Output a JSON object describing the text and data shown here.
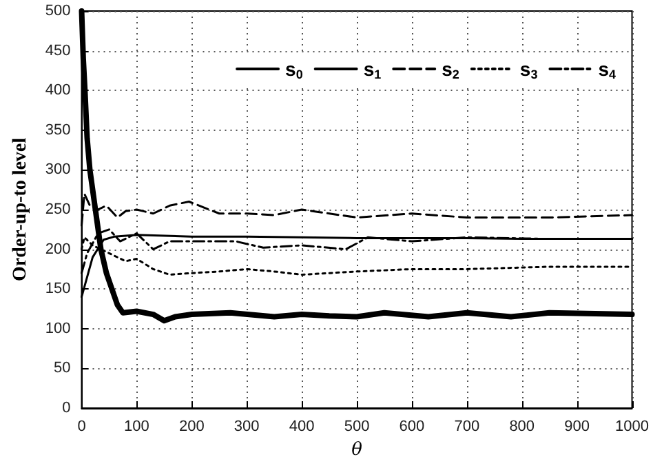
{
  "chart_data": {
    "type": "line",
    "xlabel": "θ",
    "ylabel": "Order-up-to level",
    "xlim": [
      0,
      1000
    ],
    "ylim": [
      0,
      500
    ],
    "xticks": [
      0,
      100,
      200,
      300,
      400,
      500,
      600,
      700,
      800,
      900,
      1000
    ],
    "yticks": [
      0,
      50,
      100,
      150,
      200,
      250,
      300,
      350,
      400,
      450,
      500
    ],
    "grid": true,
    "legend": "top right",
    "marker": "none",
    "series": [
      {
        "name": "s$_{0}$",
        "color": "#000000",
        "line_style": "solid",
        "x": [
          0,
          20,
          40,
          60,
          100,
          200,
          300,
          400,
          500,
          600,
          700,
          800,
          900,
          1000
        ],
        "values": [
          140,
          190,
          212,
          216,
          218,
          216,
          216,
          215,
          214,
          214,
          214,
          213,
          213,
          213
        ]
      },
      {
        "name": "s$_{1}$",
        "color": "#000000",
        "line_style": "solid",
        "x": [
          0,
          3,
          6,
          10,
          15,
          25,
          35,
          45,
          55,
          65,
          75,
          100,
          130,
          150,
          170,
          200,
          270,
          350,
          400,
          450,
          500,
          550,
          630,
          700,
          780,
          850,
          1000
        ],
        "values": [
          500,
          440,
          400,
          340,
          300,
          250,
          200,
          170,
          150,
          130,
          120,
          122,
          118,
          110,
          115,
          118,
          120,
          115,
          118,
          116,
          115,
          120,
          115,
          120,
          115,
          120,
          118
        ]
      },
      {
        "name": "s$_{2}$",
        "color": "#000000",
        "line_style": "dashed",
        "x": [
          0,
          5,
          15,
          30,
          45,
          65,
          80,
          100,
          130,
          160,
          195,
          250,
          300,
          350,
          400,
          450,
          500,
          600,
          700,
          850,
          1000
        ],
        "values": [
          230,
          270,
          255,
          250,
          255,
          240,
          248,
          250,
          245,
          255,
          260,
          245,
          245,
          243,
          250,
          245,
          240,
          245,
          240,
          240,
          243
        ]
      },
      {
        "name": "s$_{3}$",
        "color": "#000000",
        "line_style": "dotted",
        "x": [
          0,
          5,
          20,
          50,
          80,
          100,
          130,
          160,
          200,
          250,
          300,
          350,
          400,
          450,
          500,
          600,
          700,
          850,
          1000
        ],
        "values": [
          200,
          215,
          205,
          195,
          185,
          188,
          175,
          168,
          170,
          172,
          175,
          172,
          168,
          170,
          172,
          175,
          175,
          178,
          178
        ]
      },
      {
        "name": "s$_{4}$",
        "color": "#000000",
        "line_style": "dashdot",
        "x": [
          0,
          10,
          30,
          50,
          70,
          100,
          130,
          160,
          200,
          280,
          330,
          400,
          480,
          520,
          600,
          700,
          850,
          1000
        ],
        "values": [
          170,
          195,
          220,
          225,
          210,
          220,
          200,
          210,
          210,
          210,
          202,
          205,
          200,
          215,
          210,
          215,
          213,
          213
        ]
      }
    ]
  }
}
